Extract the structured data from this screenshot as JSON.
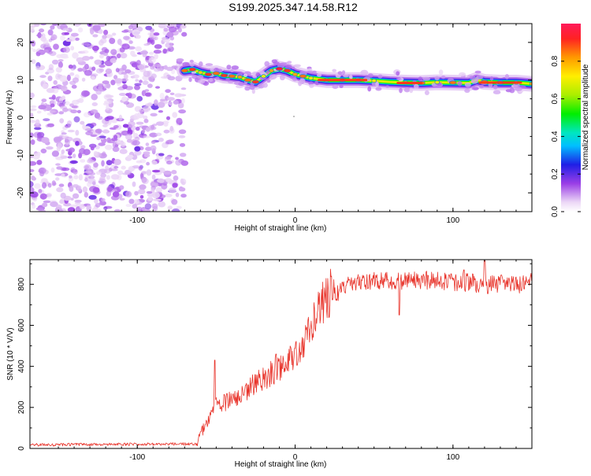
{
  "title": "S199.2025.347.14.58.R12",
  "chart_data": [
    {
      "type": "heatmap",
      "name": "spectrogram",
      "xlabel": "Height of straight line (km)",
      "ylabel": "Frequency (Hz)",
      "xlim": [
        -168,
        150
      ],
      "ylim": [
        -25,
        25
      ],
      "xticks": [
        -100,
        0,
        100
      ],
      "yticks": [
        -20,
        -10,
        0,
        10,
        20
      ],
      "noise_region_x": [
        -168,
        -70
      ],
      "ridge": {
        "x": [
          -70,
          -65,
          -60,
          -55,
          -50,
          -45,
          -40,
          -35,
          -30,
          -25,
          -20,
          -15,
          -10,
          -5,
          0,
          5,
          10,
          20,
          30,
          40,
          50,
          60,
          70,
          80,
          90,
          100,
          110,
          115,
          120,
          130,
          140,
          150
        ],
        "freq": [
          12.5,
          12.8,
          12.0,
          11.5,
          11.8,
          11.2,
          11.0,
          10.8,
          10.0,
          9.5,
          11.0,
          12.5,
          13.0,
          12.5,
          11.5,
          11.0,
          10.5,
          10.0,
          10.0,
          10.0,
          9.8,
          9.5,
          9.3,
          9.2,
          9.4,
          9.3,
          9.2,
          10.0,
          9.5,
          9.3,
          9.3,
          9.0
        ],
        "amplitude": [
          0.85,
          0.9,
          0.75,
          0.9,
          0.85,
          0.9,
          0.85,
          0.8,
          0.85,
          0.9,
          0.7,
          0.8,
          0.95,
          0.9,
          0.8,
          0.85,
          0.7,
          0.75,
          0.9,
          0.85,
          0.7,
          0.6,
          0.8,
          0.85,
          0.7,
          0.85,
          0.65,
          0.6,
          0.85,
          0.85,
          0.8,
          0.8
        ]
      },
      "colorbar": {
        "label": "Normalized spectral amplitude",
        "range": [
          0,
          1
        ],
        "ticks": [
          "0.0",
          "0.2",
          "0.4",
          "0.6",
          "0.8"
        ]
      }
    },
    {
      "type": "line",
      "name": "snr",
      "xlabel": "Height of straight line (km)",
      "ylabel": "SNR (10 * V/V)",
      "xlim": [
        -168,
        150
      ],
      "ylim": [
        0,
        920
      ],
      "xticks": [
        -100,
        0,
        100
      ],
      "yticks": [
        0,
        200,
        400,
        600,
        800
      ],
      "color": "#e8332a",
      "trend": {
        "x": [
          -168,
          -62,
          -60,
          -55,
          -50,
          -45,
          -40,
          -35,
          -30,
          -25,
          -20,
          -15,
          -10,
          -5,
          0,
          5,
          10,
          15,
          20,
          25,
          30,
          40,
          50,
          60,
          70,
          80,
          90,
          100,
          110,
          120,
          130,
          140,
          150
        ],
        "y": [
          18,
          22,
          60,
          130,
          200,
          210,
          230,
          250,
          270,
          300,
          320,
          350,
          370,
          400,
          430,
          480,
          560,
          640,
          700,
          750,
          790,
          810,
          820,
          820,
          825,
          820,
          830,
          810,
          815,
          800,
          810,
          800,
          820
        ]
      },
      "spikes": [
        {
          "x": -51,
          "y": 430
        },
        {
          "x": -12,
          "y": 460
        },
        {
          "x": 30,
          "y": 810
        },
        {
          "x": 66,
          "y": 650
        },
        {
          "x": 107,
          "y": 870
        },
        {
          "x": 120,
          "y": 915
        }
      ]
    }
  ]
}
